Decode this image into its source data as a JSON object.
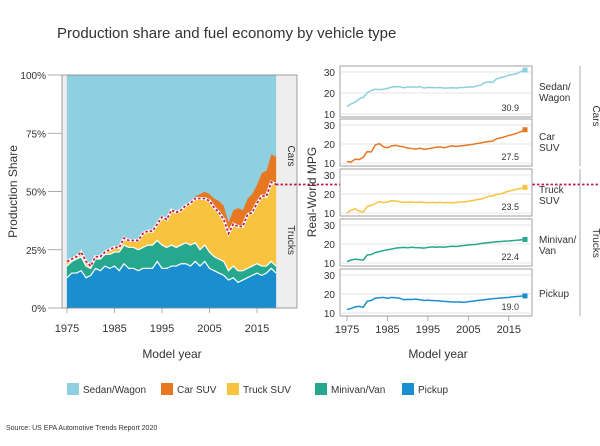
{
  "title": "Production share and fuel economy by vehicle type",
  "source": "Source: US EPA Automotive Trends Report 2020",
  "colors": {
    "sedan": "#8ecfe0",
    "carsuv": "#e87722",
    "trucksuv": "#f8c440",
    "minivan": "#25a88d",
    "pickup": "#1a8fcf",
    "divider": "#c41e47",
    "plot_bg": "#eeeeee",
    "frame": "#888888"
  },
  "chart_data": [
    {
      "type": "area",
      "stacked": true,
      "x": [
        1975,
        1976,
        1977,
        1978,
        1979,
        1980,
        1981,
        1982,
        1983,
        1984,
        1985,
        1986,
        1987,
        1988,
        1989,
        1990,
        1991,
        1992,
        1993,
        1994,
        1995,
        1996,
        1997,
        1998,
        1999,
        2000,
        2001,
        2002,
        2003,
        2004,
        2005,
        2006,
        2007,
        2008,
        2009,
        2010,
        2011,
        2012,
        2013,
        2014,
        2015,
        2016,
        2017,
        2018,
        2019
      ],
      "xlabel": "Model year",
      "ylabel": "Production Share",
      "ylim": [
        0,
        100
      ],
      "yticks": [
        "0%",
        "25%",
        "50%",
        "75%",
        "100%"
      ],
      "xticks": [
        1975,
        1985,
        1995,
        2005,
        2015
      ],
      "series": [
        {
          "name": "Pickup",
          "key": "pickup",
          "values": [
            13,
            15,
            15,
            16,
            13,
            14,
            17,
            16,
            18,
            17,
            18,
            16,
            19,
            17,
            17,
            16,
            17,
            17,
            17,
            20,
            17,
            17,
            18,
            18,
            19,
            19,
            18,
            20,
            18,
            20,
            17,
            16,
            15,
            14,
            12,
            13,
            11,
            12,
            13,
            14,
            15,
            14,
            15,
            17,
            15
          ]
        },
        {
          "name": "Minivan/Van",
          "key": "minivan",
          "values": [
            5,
            5,
            6,
            6,
            5,
            3,
            4,
            5,
            5,
            6,
            6,
            8,
            8,
            9,
            9,
            9,
            9,
            10,
            10,
            9,
            10,
            9,
            9,
            8,
            8,
            9,
            9,
            8,
            7,
            7,
            7,
            6,
            6,
            6,
            4,
            5,
            5,
            4,
            4,
            4,
            4,
            4,
            3,
            3,
            3
          ]
        },
        {
          "name": "Truck SUV",
          "key": "trucksuv",
          "values": [
            2,
            1,
            1,
            2,
            2,
            1,
            1,
            1,
            1,
            2,
            2,
            2,
            3,
            3,
            3,
            4,
            6,
            6,
            6,
            7,
            12,
            12,
            15,
            15,
            15,
            16,
            18,
            19,
            22,
            20,
            22,
            21,
            20,
            18,
            16,
            18,
            19,
            19,
            23,
            23,
            26,
            30,
            30,
            34,
            35
          ]
        },
        {
          "name": "Car SUV",
          "key": "carsuv",
          "values": [
            0,
            0,
            0,
            0,
            0,
            0,
            0,
            0,
            0,
            0,
            0,
            0,
            0,
            0,
            0,
            0,
            0,
            0,
            0,
            0,
            0,
            0,
            0,
            0,
            0,
            0,
            1,
            1,
            2,
            3,
            3,
            4,
            5,
            6,
            5,
            6,
            8,
            7,
            7,
            8,
            8,
            10,
            11,
            12,
            12
          ]
        },
        {
          "name": "Sedan/Wagon",
          "key": "sedan",
          "values": [
            80,
            79,
            78,
            76,
            80,
            82,
            78,
            78,
            76,
            75,
            74,
            74,
            70,
            71,
            71,
            71,
            68,
            67,
            67,
            64,
            61,
            62,
            58,
            59,
            58,
            56,
            54,
            52,
            51,
            50,
            51,
            53,
            54,
            56,
            63,
            58,
            57,
            58,
            53,
            51,
            47,
            42,
            41,
            34,
            35
          ]
        }
      ],
      "divider": {
        "label_upper": "Cars",
        "label_lower": "Trucks"
      }
    },
    {
      "type": "line",
      "x": [
        1975,
        1976,
        1977,
        1978,
        1979,
        1980,
        1981,
        1982,
        1983,
        1984,
        1985,
        1986,
        1987,
        1988,
        1989,
        1990,
        1991,
        1992,
        1993,
        1994,
        1995,
        1996,
        1997,
        1998,
        1999,
        2000,
        2001,
        2002,
        2003,
        2004,
        2005,
        2006,
        2007,
        2008,
        2009,
        2010,
        2011,
        2012,
        2013,
        2014,
        2015,
        2016,
        2017,
        2018,
        2019
      ],
      "xlabel": "Model year",
      "ylabel": "Real-World MPG",
      "xticks": [
        1975,
        1985,
        1995,
        2005,
        2015
      ],
      "panels": [
        {
          "name": "Sedan/Wagon",
          "key": "sedan",
          "ylim": [
            10,
            30
          ],
          "yticks": [
            10,
            20,
            30
          ],
          "last_label": "30.9",
          "values": [
            13.5,
            14.8,
            15.6,
            17.2,
            17.9,
            20.1,
            21.2,
            21.8,
            21.6,
            21.8,
            22.2,
            22.8,
            23.0,
            23.0,
            22.5,
            22.8,
            22.9,
            22.8,
            23.0,
            22.4,
            22.7,
            22.6,
            22.5,
            22.6,
            22.3,
            22.4,
            22.5,
            22.3,
            22.6,
            22.6,
            22.9,
            22.8,
            23.3,
            23.7,
            24.9,
            25.3,
            25.0,
            26.8,
            27.3,
            27.7,
            28.5,
            28.8,
            29.3,
            30.2,
            30.9
          ]
        },
        {
          "name": "Car SUV",
          "key": "carsuv",
          "ylim": [
            10,
            30
          ],
          "yticks": [
            10,
            20,
            30
          ],
          "last_label": "27.5",
          "values": [
            10.8,
            10.5,
            12.0,
            11.8,
            13.0,
            16.0,
            15.8,
            19.5,
            20.2,
            18.5,
            18.0,
            19.0,
            19.3,
            18.8,
            18.5,
            17.8,
            17.6,
            17.3,
            17.8,
            17.2,
            17.5,
            17.8,
            18.3,
            18.5,
            18.0,
            18.6,
            19.0,
            18.7,
            19.0,
            19.2,
            19.5,
            19.8,
            20.2,
            20.5,
            21.0,
            21.3,
            21.5,
            22.8,
            23.2,
            23.8,
            24.5,
            25.0,
            25.7,
            26.5,
            27.5
          ]
        },
        {
          "name": "Truck SUV",
          "key": "trucksuv",
          "ylim": [
            10,
            30
          ],
          "yticks": [
            10,
            20,
            30
          ],
          "last_label": "23.5",
          "values": [
            10.0,
            11.5,
            12.2,
            11.0,
            10.5,
            13.5,
            14.0,
            15.0,
            16.0,
            15.5,
            15.8,
            16.5,
            16.3,
            16.0,
            15.6,
            15.7,
            15.8,
            15.5,
            15.7,
            15.5,
            15.4,
            15.6,
            15.4,
            15.6,
            15.4,
            15.5,
            15.3,
            15.5,
            15.8,
            15.8,
            16.2,
            16.5,
            17.0,
            17.3,
            18.0,
            18.8,
            19.0,
            19.8,
            20.0,
            20.8,
            21.5,
            22.0,
            22.5,
            23.0,
            23.5
          ]
        },
        {
          "name": "Minivan/Van",
          "key": "minivan",
          "ylim": [
            10,
            30
          ],
          "yticks": [
            10,
            20,
            30
          ],
          "last_label": "22.4",
          "values": [
            10.8,
            11.5,
            12.0,
            11.8,
            11.5,
            14.2,
            14.5,
            15.5,
            16.0,
            16.5,
            17.0,
            17.3,
            17.8,
            18.0,
            18.2,
            18.0,
            18.3,
            18.1,
            18.0,
            17.8,
            18.2,
            18.5,
            18.3,
            18.5,
            18.3,
            18.6,
            18.8,
            18.7,
            19.0,
            19.2,
            19.5,
            19.7,
            19.8,
            20.2,
            20.5,
            20.7,
            20.9,
            21.2,
            21.3,
            21.5,
            21.6,
            21.8,
            22.0,
            22.2,
            22.4
          ]
        },
        {
          "name": "Pickup",
          "key": "pickup",
          "ylim": [
            10,
            30
          ],
          "yticks": [
            10,
            20,
            30
          ],
          "last_label": "19.0",
          "values": [
            11.8,
            12.4,
            13.2,
            13.5,
            13.0,
            16.2,
            16.6,
            17.8,
            18.0,
            18.2,
            17.7,
            18.2,
            18.0,
            17.8,
            17.0,
            17.2,
            17.1,
            17.3,
            17.0,
            16.6,
            16.8,
            16.5,
            16.5,
            16.3,
            16.1,
            16.0,
            15.8,
            15.8,
            15.8,
            15.6,
            16.0,
            16.2,
            16.5,
            16.8,
            17.0,
            17.3,
            17.5,
            17.7,
            17.9,
            18.0,
            18.2,
            18.5,
            18.7,
            18.9,
            19.0
          ]
        }
      ],
      "group_labels": {
        "cars": "Cars",
        "trucks": "Trucks"
      }
    }
  ],
  "legend": [
    {
      "label": "Sedan/Wagon",
      "key": "sedan"
    },
    {
      "label": "Car SUV",
      "key": "carsuv"
    },
    {
      "label": "Truck SUV",
      "key": "trucksuv"
    },
    {
      "label": "Minivan/Van",
      "key": "minivan"
    },
    {
      "label": "Pickup",
      "key": "pickup"
    }
  ]
}
